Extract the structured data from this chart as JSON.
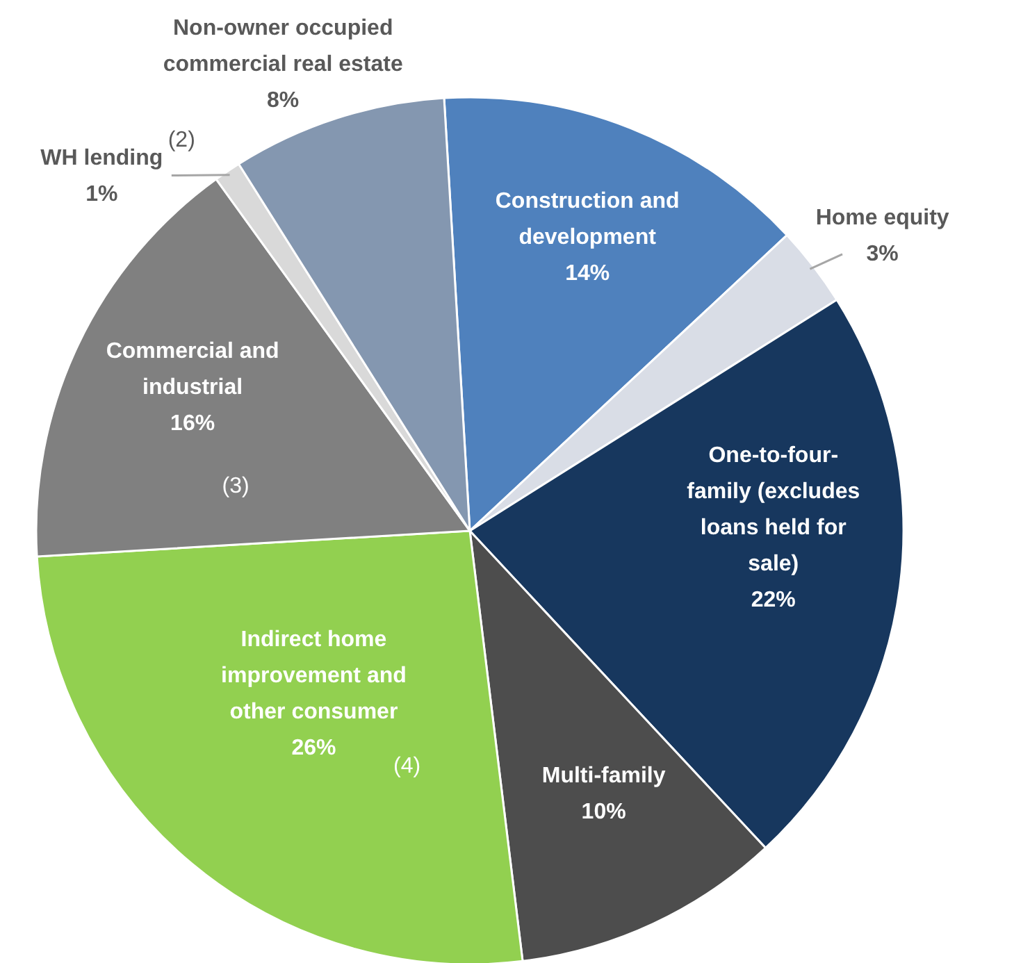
{
  "chart_data": {
    "type": "pie",
    "categories": [
      "Construction and development",
      "Home equity",
      "One-to-four-family (excludes loans held for sale)",
      "Multi-family",
      "Indirect home improvement and other consumer",
      "Commercial and industrial",
      "WH lending",
      "Non-owner occupied commercial real estate"
    ],
    "values": [
      14,
      3,
      22,
      10,
      26,
      16,
      1,
      8
    ],
    "value_labels": [
      "14%",
      "3%",
      "22%",
      "10%",
      "26%",
      "16%",
      "1%",
      "8%"
    ],
    "colors": [
      "#4f81bd",
      "#d9dde6",
      "#17375e",
      "#4d4d4d",
      "#92d050",
      "#808080",
      "#d9d9d9",
      "#8497b0"
    ],
    "annotations": [
      "(2)",
      "(3)",
      "(4)"
    ]
  }
}
